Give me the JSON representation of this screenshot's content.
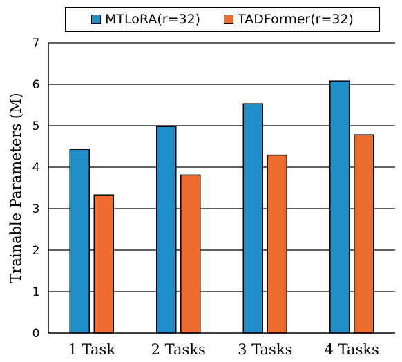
{
  "chart_data": {
    "type": "bar",
    "title": "",
    "xlabel": "",
    "ylabel": "Trainable Parameters (M)",
    "categories": [
      "1 Task",
      "2 Tasks",
      "3 Tasks",
      "4 Tasks"
    ],
    "series": [
      {
        "name": "MTLoRA(r=32)",
        "color": "#1f8ec9",
        "values": [
          4.43,
          4.98,
          5.53,
          6.08
        ]
      },
      {
        "name": "TADFormer(r=32)",
        "color": "#ee6c2d",
        "values": [
          3.33,
          3.81,
          4.29,
          4.78
        ]
      }
    ],
    "ylim": [
      0,
      7
    ],
    "yticks": [
      0,
      1,
      2,
      3,
      4,
      5,
      6,
      7
    ],
    "grid": true,
    "legend_position": "top"
  }
}
